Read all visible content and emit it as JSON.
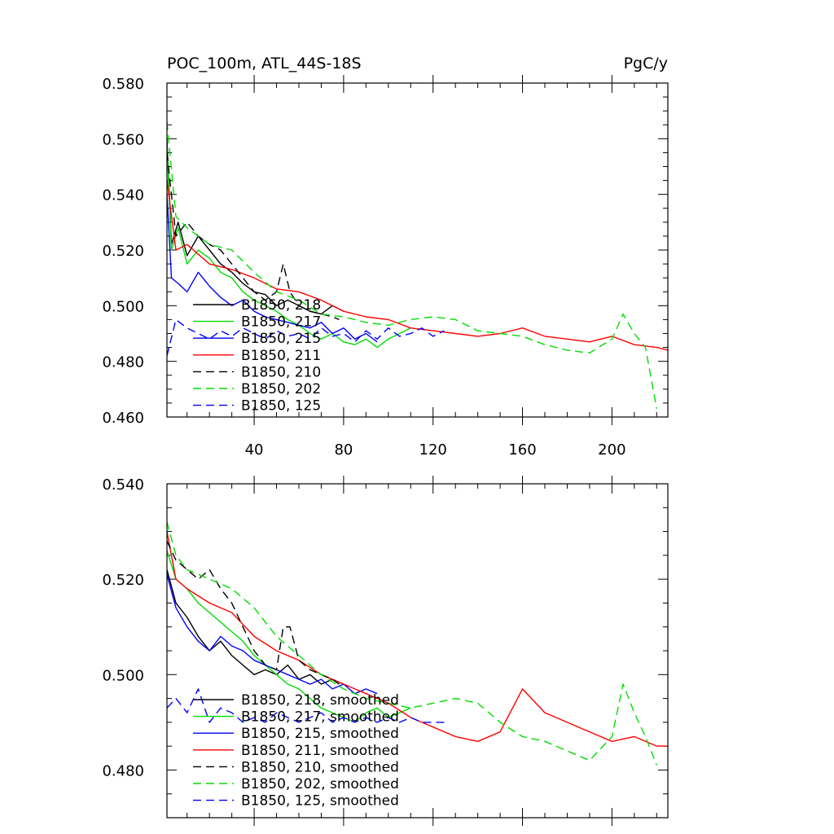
{
  "chart_data": [
    {
      "type": "line",
      "title": "POC_100m, ATL_44S-18S",
      "units": "PgC/y",
      "xlim": [
        1,
        225
      ],
      "ylim": [
        0.46,
        0.58
      ],
      "x_ticks": [
        40,
        80,
        120,
        160,
        200
      ],
      "y_ticks": [
        "0.460",
        "0.480",
        "0.500",
        "0.520",
        "0.540",
        "0.560",
        "0.580"
      ],
      "legend_position": "lower-left",
      "series": [
        {
          "name": "B1850, 218",
          "color": "#000000",
          "dash": "solid",
          "x": [
            1,
            3,
            6,
            10,
            15,
            20,
            25,
            30,
            35,
            40,
            45,
            50,
            55,
            60,
            65,
            70,
            75,
            80
          ],
          "values": [
            0.56,
            0.522,
            0.53,
            0.518,
            0.525,
            0.52,
            0.515,
            0.512,
            0.508,
            0.505,
            0.504,
            0.5,
            0.502,
            0.5,
            0.498,
            0.497,
            0.5,
            0.498
          ]
        },
        {
          "name": "B1850, 217",
          "color": "#00dd00",
          "dash": "solid",
          "x": [
            1,
            3,
            6,
            10,
            15,
            20,
            25,
            30,
            35,
            40,
            45,
            50,
            55,
            60,
            65,
            70,
            75,
            80,
            85,
            90,
            95,
            100,
            105,
            110
          ],
          "values": [
            0.558,
            0.52,
            0.528,
            0.515,
            0.52,
            0.517,
            0.512,
            0.51,
            0.505,
            0.502,
            0.5,
            0.498,
            0.495,
            0.493,
            0.49,
            0.488,
            0.49,
            0.487,
            0.486,
            0.488,
            0.485,
            0.488,
            0.49,
            0.492
          ]
        },
        {
          "name": "B1850, 215",
          "color": "#0000ff",
          "dash": "solid",
          "x": [
            1,
            3,
            6,
            10,
            15,
            20,
            25,
            30,
            35,
            40,
            45,
            50,
            55,
            60,
            65,
            70,
            75,
            80,
            85,
            90,
            95
          ],
          "values": [
            0.54,
            0.51,
            0.508,
            0.505,
            0.512,
            0.507,
            0.503,
            0.5,
            0.502,
            0.498,
            0.496,
            0.495,
            0.494,
            0.493,
            0.492,
            0.494,
            0.49,
            0.492,
            0.488,
            0.49,
            0.487
          ]
        },
        {
          "name": "B1850, 211",
          "color": "#ff0000",
          "dash": "solid",
          "x": [
            1,
            5,
            10,
            20,
            30,
            40,
            50,
            60,
            70,
            80,
            90,
            100,
            110,
            120,
            130,
            140,
            150,
            160,
            170,
            180,
            190,
            200,
            210,
            220,
            225
          ],
          "values": [
            0.545,
            0.52,
            0.522,
            0.515,
            0.513,
            0.51,
            0.506,
            0.505,
            0.502,
            0.498,
            0.496,
            0.495,
            0.492,
            0.491,
            0.49,
            0.489,
            0.49,
            0.492,
            0.489,
            0.488,
            0.487,
            0.489,
            0.486,
            0.485,
            0.484
          ]
        },
        {
          "name": "B1850, 210",
          "color": "#000000",
          "dash": "dashed",
          "x": [
            1,
            5,
            10,
            15,
            20,
            25,
            30,
            35,
            40,
            45,
            50,
            53,
            56,
            60,
            65,
            70,
            75,
            78
          ],
          "values": [
            0.555,
            0.525,
            0.53,
            0.525,
            0.522,
            0.52,
            0.515,
            0.51,
            0.505,
            0.502,
            0.505,
            0.515,
            0.505,
            0.5,
            0.498,
            0.497,
            0.496,
            0.495
          ]
        },
        {
          "name": "B1850, 202",
          "color": "#00dd00",
          "dash": "dashed",
          "x": [
            1,
            5,
            10,
            20,
            30,
            40,
            50,
            60,
            70,
            80,
            90,
            100,
            110,
            120,
            130,
            140,
            150,
            160,
            170,
            180,
            190,
            200,
            205,
            210,
            215,
            220
          ],
          "values": [
            0.566,
            0.532,
            0.528,
            0.522,
            0.52,
            0.512,
            0.505,
            0.502,
            0.497,
            0.496,
            0.494,
            0.493,
            0.495,
            0.496,
            0.495,
            0.491,
            0.49,
            0.489,
            0.486,
            0.484,
            0.483,
            0.488,
            0.497,
            0.49,
            0.485,
            0.463
          ]
        },
        {
          "name": "B1850, 125",
          "color": "#0000ff",
          "dash": "dashed",
          "x": [
            1,
            5,
            10,
            15,
            20,
            25,
            30,
            35,
            40,
            45,
            50,
            55,
            60,
            65,
            70,
            75,
            80,
            85,
            90,
            95,
            100,
            105,
            110,
            115,
            120,
            125
          ],
          "values": [
            0.482,
            0.495,
            0.492,
            0.49,
            0.488,
            0.491,
            0.489,
            0.492,
            0.49,
            0.488,
            0.491,
            0.489,
            0.49,
            0.488,
            0.492,
            0.489,
            0.49,
            0.487,
            0.491,
            0.488,
            0.492,
            0.489,
            0.49,
            0.492,
            0.489,
            0.491
          ]
        }
      ]
    },
    {
      "type": "line",
      "title": "",
      "xlim": [
        1,
        225
      ],
      "ylim": [
        0.47,
        0.54
      ],
      "x_ticks": [
        40,
        80,
        120,
        160,
        200
      ],
      "y_ticks": [
        "0.480",
        "0.500",
        "0.520",
        "0.540"
      ],
      "legend_position": "lower-left",
      "series": [
        {
          "name": "B1850, 218, smoothed",
          "color": "#000000",
          "dash": "solid",
          "x": [
            1,
            5,
            10,
            15,
            20,
            25,
            30,
            35,
            40,
            45,
            50,
            55,
            60,
            65,
            70,
            75,
            80
          ],
          "values": [
            0.522,
            0.515,
            0.512,
            0.508,
            0.505,
            0.507,
            0.504,
            0.502,
            0.5,
            0.501,
            0.5,
            0.502,
            0.499,
            0.5,
            0.498,
            0.499,
            0.498
          ]
        },
        {
          "name": "B1850, 217, smoothed",
          "color": "#00dd00",
          "dash": "solid",
          "x": [
            1,
            5,
            10,
            15,
            20,
            25,
            30,
            35,
            40,
            45,
            50,
            55,
            60,
            65,
            70,
            75,
            80,
            85,
            90,
            95,
            100,
            105,
            110
          ],
          "values": [
            0.526,
            0.52,
            0.518,
            0.515,
            0.513,
            0.511,
            0.509,
            0.507,
            0.504,
            0.502,
            0.5,
            0.498,
            0.497,
            0.495,
            0.493,
            0.492,
            0.491,
            0.49,
            0.492,
            0.493,
            0.491,
            0.492,
            0.493
          ]
        },
        {
          "name": "B1850, 215, smoothed",
          "color": "#0000ff",
          "dash": "solid",
          "x": [
            1,
            5,
            10,
            15,
            20,
            25,
            30,
            35,
            40,
            45,
            50,
            55,
            60,
            65,
            70,
            75,
            80,
            85,
            90,
            95
          ],
          "values": [
            0.521,
            0.514,
            0.51,
            0.507,
            0.505,
            0.508,
            0.506,
            0.505,
            0.503,
            0.502,
            0.501,
            0.5,
            0.499,
            0.498,
            0.499,
            0.497,
            0.498,
            0.496,
            0.497,
            0.496
          ]
        },
        {
          "name": "B1850, 211, smoothed",
          "color": "#ff0000",
          "dash": "solid",
          "x": [
            1,
            5,
            10,
            20,
            30,
            40,
            50,
            60,
            70,
            80,
            90,
            100,
            110,
            120,
            130,
            140,
            150,
            160,
            170,
            180,
            190,
            200,
            210,
            220,
            225
          ],
          "values": [
            0.53,
            0.52,
            0.518,
            0.515,
            0.513,
            0.508,
            0.505,
            0.503,
            0.5,
            0.498,
            0.496,
            0.494,
            0.491,
            0.489,
            0.487,
            0.486,
            0.488,
            0.497,
            0.492,
            0.49,
            0.488,
            0.486,
            0.487,
            0.485,
            0.485
          ]
        },
        {
          "name": "B1850, 210, smoothed",
          "color": "#000000",
          "dash": "dashed",
          "x": [
            1,
            5,
            10,
            15,
            20,
            25,
            30,
            35,
            40,
            45,
            50,
            53,
            56,
            60,
            65,
            70,
            75,
            78
          ],
          "values": [
            0.528,
            0.524,
            0.522,
            0.52,
            0.522,
            0.518,
            0.515,
            0.51,
            0.505,
            0.502,
            0.501,
            0.51,
            0.51,
            0.503,
            0.501,
            0.5,
            0.499,
            0.498
          ]
        },
        {
          "name": "B1850, 202, smoothed",
          "color": "#00dd00",
          "dash": "dashed",
          "x": [
            1,
            5,
            10,
            20,
            30,
            40,
            50,
            60,
            70,
            80,
            90,
            100,
            110,
            120,
            130,
            140,
            150,
            160,
            170,
            180,
            190,
            200,
            205,
            210,
            215,
            220
          ],
          "values": [
            0.532,
            0.525,
            0.522,
            0.52,
            0.518,
            0.514,
            0.508,
            0.504,
            0.5,
            0.497,
            0.495,
            0.494,
            0.493,
            0.494,
            0.495,
            0.494,
            0.49,
            0.487,
            0.486,
            0.484,
            0.482,
            0.487,
            0.498,
            0.492,
            0.487,
            0.481
          ]
        },
        {
          "name": "B1850, 125, smoothed",
          "color": "#0000ff",
          "dash": "dashed",
          "x": [
            1,
            5,
            10,
            15,
            20,
            25,
            30,
            35,
            40,
            45,
            50,
            55,
            60,
            65,
            70,
            75,
            80,
            85,
            90,
            95,
            100,
            105,
            110,
            115,
            120,
            125
          ],
          "values": [
            0.493,
            0.495,
            0.492,
            0.497,
            0.49,
            0.493,
            0.492,
            0.49,
            0.491,
            0.49,
            0.492,
            0.491,
            0.49,
            0.491,
            0.492,
            0.49,
            0.491,
            0.49,
            0.491,
            0.49,
            0.491,
            0.49,
            0.491,
            0.49,
            0.49,
            0.49
          ]
        }
      ]
    }
  ]
}
